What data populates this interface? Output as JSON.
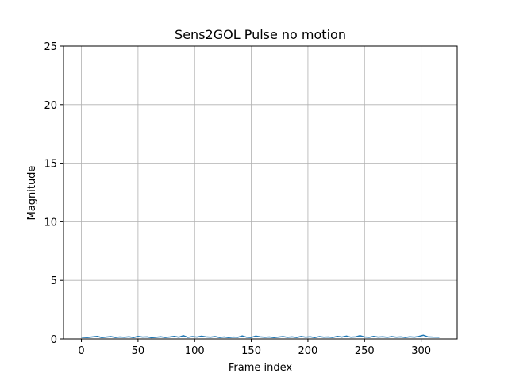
{
  "chart_data": {
    "type": "line",
    "title": "Sens2GOL Pulse no motion",
    "xlabel": "Frame index",
    "ylabel": "Magnitude",
    "xlim": [
      -15.8,
      331.8
    ],
    "ylim": [
      0,
      25
    ],
    "xticks": [
      0,
      50,
      100,
      150,
      200,
      250,
      300
    ],
    "yticks": [
      0,
      5,
      10,
      15,
      20,
      25
    ],
    "grid": true,
    "line_color": "#1f77b4",
    "series": [
      {
        "x": [
          0,
          5,
          10,
          14,
          18,
          22,
          26,
          30,
          34,
          38,
          42,
          46,
          50,
          54,
          58,
          62,
          66,
          70,
          74,
          78,
          82,
          86,
          90,
          94,
          98,
          102,
          106,
          110,
          114,
          118,
          122,
          126,
          130,
          134,
          138,
          142,
          146,
          150,
          154,
          158,
          162,
          166,
          170,
          174,
          178,
          182,
          186,
          190,
          194,
          198,
          202,
          206,
          210,
          214,
          218,
          222,
          226,
          230,
          234,
          238,
          242,
          246,
          250,
          254,
          258,
          262,
          266,
          270,
          274,
          278,
          282,
          286,
          290,
          294,
          298,
          302,
          306,
          310,
          316
        ],
        "values": [
          0.15,
          0.12,
          0.18,
          0.22,
          0.12,
          0.16,
          0.2,
          0.13,
          0.17,
          0.14,
          0.19,
          0.12,
          0.22,
          0.16,
          0.18,
          0.11,
          0.14,
          0.19,
          0.13,
          0.17,
          0.22,
          0.15,
          0.28,
          0.14,
          0.2,
          0.16,
          0.24,
          0.18,
          0.15,
          0.2,
          0.13,
          0.17,
          0.12,
          0.16,
          0.14,
          0.26,
          0.15,
          0.13,
          0.25,
          0.18,
          0.14,
          0.17,
          0.12,
          0.16,
          0.2,
          0.14,
          0.18,
          0.13,
          0.21,
          0.15,
          0.19,
          0.12,
          0.2,
          0.15,
          0.17,
          0.13,
          0.22,
          0.16,
          0.25,
          0.15,
          0.18,
          0.28,
          0.17,
          0.14,
          0.22,
          0.16,
          0.19,
          0.14,
          0.2,
          0.15,
          0.18,
          0.13,
          0.19,
          0.15,
          0.22,
          0.32,
          0.18,
          0.16,
          0.15
        ]
      }
    ]
  }
}
